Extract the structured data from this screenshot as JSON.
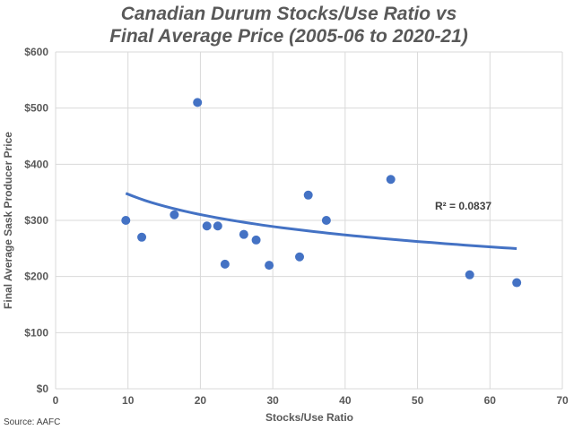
{
  "chart_data": {
    "type": "scatter",
    "title_lines": [
      "Canadian Durum Stocks/Use Ratio vs",
      "Final Average Price (2005-06 to 2020-21)"
    ],
    "xlabel": "Stocks/Use Ratio",
    "ylabel": "Final Average Sask Producer Price",
    "xlim": [
      0,
      70
    ],
    "ylim": [
      0,
      600
    ],
    "x_ticks": [
      0,
      10,
      20,
      30,
      40,
      50,
      60,
      70
    ],
    "y_ticks": [
      0,
      100,
      200,
      300,
      400,
      500,
      600
    ],
    "y_tick_labels": [
      "$0",
      "$100",
      "$200",
      "$300",
      "$400",
      "$500",
      "$600"
    ],
    "grid": "horizontal and vertical",
    "marker_color": "#4472C4",
    "trendline_color": "#4472C4",
    "points": [
      {
        "x": 9.7,
        "y": 300
      },
      {
        "x": 11.9,
        "y": 270
      },
      {
        "x": 16.4,
        "y": 310
      },
      {
        "x": 19.6,
        "y": 510
      },
      {
        "x": 20.9,
        "y": 290
      },
      {
        "x": 22.4,
        "y": 290
      },
      {
        "x": 23.4,
        "y": 222
      },
      {
        "x": 26.0,
        "y": 275
      },
      {
        "x": 27.7,
        "y": 265
      },
      {
        "x": 29.5,
        "y": 220
      },
      {
        "x": 33.7,
        "y": 235
      },
      {
        "x": 34.9,
        "y": 345
      },
      {
        "x": 37.4,
        "y": 300
      },
      {
        "x": 46.3,
        "y": 373
      },
      {
        "x": 57.2,
        "y": 203
      },
      {
        "x": 63.7,
        "y": 189
      }
    ],
    "trendline": {
      "type": "logarithmic",
      "a": 467,
      "b": -52.3,
      "x_start": 9.7,
      "x_end": 63.7
    },
    "annotation": "R² = 0.0837"
  },
  "source": "Source: AAFC"
}
